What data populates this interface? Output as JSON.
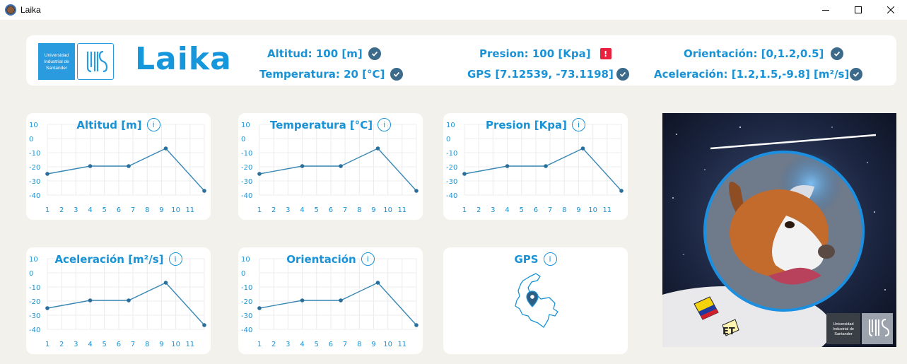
{
  "window": {
    "title": "Laika",
    "controls": [
      "minimize-icon",
      "maximize-icon",
      "close-icon"
    ]
  },
  "header": {
    "logo_text": "Universidad Industrial de Santander",
    "app_name": "Laika",
    "stats": [
      {
        "label": "Altitud: 100 [m]",
        "status": "ok"
      },
      {
        "label": "Temperatura: 20 [°C]",
        "status": "ok"
      },
      {
        "label": "Presion: 100 [Kpa]",
        "status": "warning",
        "status_text": "!"
      },
      {
        "label": "GPS [7.12539, -73.1198]",
        "status": "ok"
      },
      {
        "label": "Orientación: [0,1.2,0.5]",
        "status": "ok"
      },
      {
        "label": "Aceleración: [1.2,1.5,-9.8] [m²/s]",
        "status": "ok"
      }
    ]
  },
  "cards": [
    {
      "title": "Altitud [m]"
    },
    {
      "title": "Temperatura [°C]"
    },
    {
      "title": "Presion [Kpa]"
    },
    {
      "title": "Aceleración [m²/s]"
    },
    {
      "title": "Orientación"
    },
    {
      "title": "GPS"
    }
  ],
  "info_glyph": "i",
  "photo": {
    "badge_text": "Universidad Industrial de Santander"
  },
  "colors": {
    "accent": "#1a93d6",
    "line": "#3a87b5",
    "ok": "#3c6a8a",
    "warning": "#e8223e",
    "background": "#f2f1ec"
  },
  "chart_data": [
    {
      "type": "line",
      "title": "Altitud [m]",
      "x": [
        1,
        4,
        6.7,
        9.3,
        12
      ],
      "values": [
        -25,
        -19.5,
        -19.5,
        -7,
        -37
      ],
      "yticks": [
        10,
        0,
        -10,
        -20,
        -30,
        -40
      ],
      "xticks": [
        1,
        2,
        3,
        4,
        5,
        6,
        7,
        8,
        9,
        10,
        11
      ],
      "ylim": [
        -40,
        10
      ]
    },
    {
      "type": "line",
      "title": "Temperatura [°C]",
      "x": [
        1,
        4,
        6.7,
        9.3,
        12
      ],
      "values": [
        -25,
        -19.5,
        -19.5,
        -7,
        -37
      ],
      "yticks": [
        10,
        0,
        -10,
        -20,
        -30,
        -40
      ],
      "xticks": [
        1,
        2,
        3,
        4,
        5,
        6,
        7,
        8,
        9,
        10,
        11
      ],
      "ylim": [
        -40,
        10
      ]
    },
    {
      "type": "line",
      "title": "Presion [Kpa]",
      "x": [
        1,
        4,
        6.7,
        9.3,
        12
      ],
      "values": [
        -25,
        -19.5,
        -19.5,
        -7,
        -37
      ],
      "yticks": [
        10,
        0,
        -10,
        -20,
        -30,
        -40
      ],
      "xticks": [
        1,
        2,
        3,
        4,
        5,
        6,
        7,
        8,
        9,
        10,
        11
      ],
      "ylim": [
        -40,
        10
      ]
    },
    {
      "type": "line",
      "title": "Aceleración [m²/s]",
      "x": [
        1,
        4,
        6.7,
        9.3,
        12
      ],
      "values": [
        -25,
        -19.5,
        -19.5,
        -7,
        -37
      ],
      "yticks": [
        10,
        0,
        -10,
        -20,
        -30,
        -40
      ],
      "xticks": [
        1,
        2,
        3,
        4,
        5,
        6,
        7,
        8,
        9,
        10,
        11
      ],
      "ylim": [
        -40,
        10
      ]
    },
    {
      "type": "line",
      "title": "Orientación",
      "x": [
        1,
        4,
        6.7,
        9.3,
        12
      ],
      "values": [
        -25,
        -19.5,
        -19.5,
        -7,
        -37
      ],
      "yticks": [
        10,
        0,
        -10,
        -20,
        -30,
        -40
      ],
      "xticks": [
        1,
        2,
        3,
        4,
        5,
        6,
        7,
        8,
        9,
        10,
        11
      ],
      "ylim": [
        -40,
        10
      ]
    }
  ]
}
